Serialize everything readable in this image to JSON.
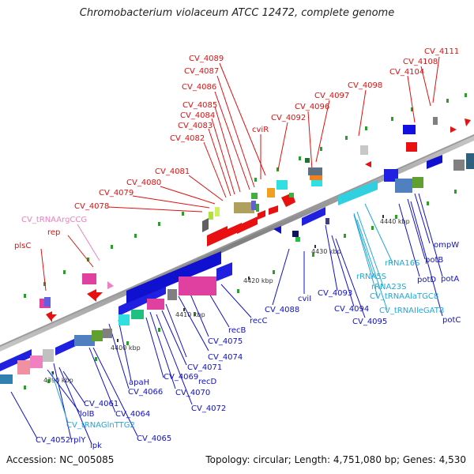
{
  "title": "Chromobacterium violaceum ATCC 12472, complete genome",
  "footer": {
    "accession": "Accession: NC_005085",
    "stats": "Topology: circular; Length: 4,751,080 bp; Genes: 4,530"
  },
  "colors": {
    "upper_labels": "#e01010",
    "lower_labels": "#1010cc",
    "rna_labels": "#20a8d8",
    "trna_pink": "#f080c0",
    "backbone": "#808080"
  },
  "scale_marks": [
    "4390 kbp",
    "4400 kbp",
    "4410 kbp",
    "4420 kbp",
    "4430 kbp",
    "4440 kbp"
  ],
  "upper_labels": [
    "CV_4111",
    "CV_4108",
    "CV_4104",
    "CV_4098",
    "CV_4097",
    "CV_4096",
    "CV_4092",
    "cviR",
    "CV_4089",
    "CV_4087",
    "CV_4086",
    "CV_4085",
    "CV_4084",
    "CV_4083",
    "CV_4082",
    "CV_4081",
    "CV_4080",
    "CV_4079",
    "CV_4078",
    "CV_tRNAArgCCG",
    "rep",
    "plsC"
  ],
  "lower_labels": [
    "ompW",
    "potB",
    "potA",
    "potD",
    "potC",
    "rRNA16S",
    "rRNA5S",
    "rRNA23S",
    "CV_tRNAAlaTGC8",
    "CV_tRNAIleGAT8",
    "CV_4093",
    "CV_4094",
    "CV_4095",
    "cviI",
    "CV_4088",
    "recC",
    "recB",
    "CV_4075",
    "CV_4074",
    "recD",
    "CV_4071",
    "CV_4070",
    "CV_4069",
    "CV_4072",
    "apaH",
    "CV_4066",
    "CV_4064",
    "CV_4065",
    "CV_4061",
    "lolB",
    "CV_tRNAGlnTTG2",
    "CV_4052",
    "rplY",
    "ipk"
  ]
}
